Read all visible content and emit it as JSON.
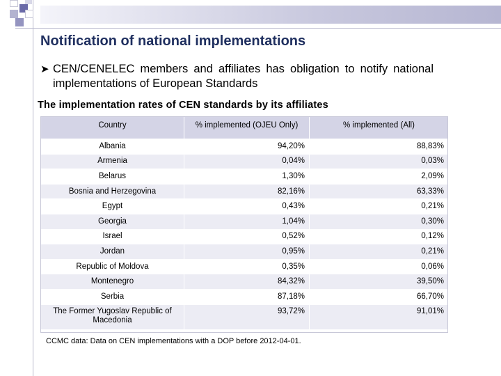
{
  "title": "Notification of national implementations",
  "bullet": {
    "icon": "arrow-bullet-icon",
    "text": "CEN/CENELEC members and affiliates has obligation to notify national implementations of European Standards"
  },
  "subtitle": "The implementation rates of CEN standards by its affiliates",
  "table": {
    "headers": [
      "Country",
      "% implemented (OJEU Only)",
      "% implemented (All)"
    ],
    "rows": [
      {
        "country": "Albania",
        "ojeu": "94,20%",
        "all": "88,83%"
      },
      {
        "country": "Armenia",
        "ojeu": "0,04%",
        "all": "0,03%"
      },
      {
        "country": "Belarus",
        "ojeu": "1,30%",
        "all": "2,09%"
      },
      {
        "country": "Bosnia and Herzegovina",
        "ojeu": "82,16%",
        "all": "63,33%"
      },
      {
        "country": "Egypt",
        "ojeu": "0,43%",
        "all": "0,21%"
      },
      {
        "country": "Georgia",
        "ojeu": "1,04%",
        "all": "0,30%"
      },
      {
        "country": "Israel",
        "ojeu": "0,52%",
        "all": "0,12%"
      },
      {
        "country": "Jordan",
        "ojeu": "0,95%",
        "all": "0,21%"
      },
      {
        "country": "Republic of Moldova",
        "ojeu": "0,35%",
        "all": "0,06%"
      },
      {
        "country": "Montenegro",
        "ojeu": "84,32%",
        "all": "39,50%"
      },
      {
        "country": "Serbia",
        "ojeu": "87,18%",
        "all": "66,70%"
      },
      {
        "country": "The Former Yugoslav Republic of Macedonia",
        "ojeu": "93,72%",
        "all": "91,01%"
      }
    ]
  },
  "note": "CCMC data: Data on CEN implementations with a DOP before 2012-04-01.",
  "colors": {
    "title": "#1f2f5f",
    "header_bg": "#d4d4e6",
    "row_shade": "#ececf4",
    "decor_blue": "#5c5c9a"
  }
}
